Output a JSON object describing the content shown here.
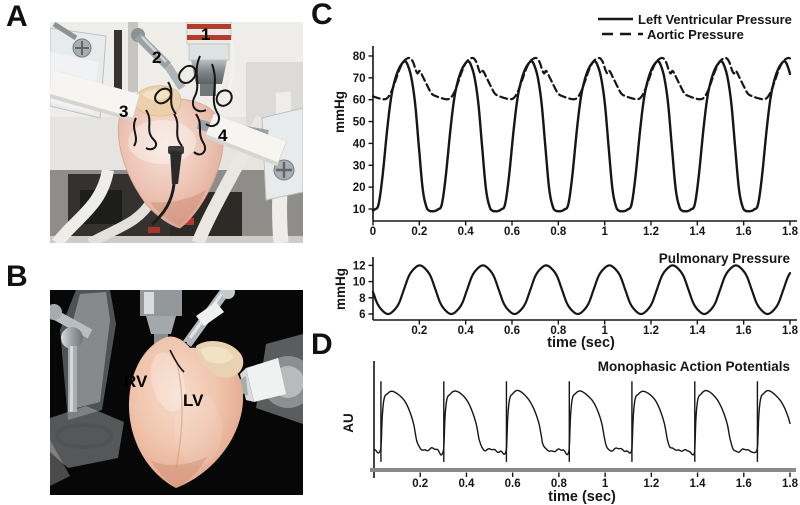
{
  "colors": {
    "ink": "#161616",
    "axis_gray": "#8a8a8a"
  },
  "panels": {
    "a": {
      "letter": "A",
      "markers": [
        "1",
        "2",
        "3",
        "4"
      ]
    },
    "b": {
      "letter": "B",
      "markers": [
        "RV",
        "LV"
      ]
    },
    "c": {
      "letter": "C"
    },
    "d": {
      "letter": "D"
    }
  },
  "chart_data": [
    {
      "id": "lv-aortic",
      "type": "line",
      "panel": "C",
      "ylabel": "mmHg",
      "xlim": [
        0,
        1.8
      ],
      "ylim": [
        4,
        84
      ],
      "grid": false,
      "legend_position": "top-right",
      "xtick_values": [
        0,
        0.2,
        0.4,
        0.6,
        0.8,
        1,
        1.2,
        1.4,
        1.6,
        1.8
      ],
      "xtick_labels": [
        "0",
        "0.2",
        "0.4",
        "0.6",
        "0.8",
        "1",
        "1.2",
        "1.4",
        "1.6",
        "1.8"
      ],
      "ytick_values": [
        10,
        20,
        30,
        40,
        50,
        60,
        70,
        80
      ],
      "ytick_labels": [
        "10",
        "20",
        "30",
        "40",
        "50",
        "60",
        "70",
        "80"
      ],
      "legend": [
        {
          "label": "Left Ventricular Pressure",
          "line": "solid"
        },
        {
          "label": "Aortic Pressure",
          "line": "dashed"
        }
      ],
      "period_sec": 0.273,
      "series": [
        {
          "name": "Left Ventricular Pressure",
          "line": "solid",
          "min_mmHg": 9,
          "peak_mmHg": 78,
          "cycle_start_sec": -0.02,
          "cycle_phase_value": [
            [
              0,
              9
            ],
            [
              0.04,
              9
            ],
            [
              0.1,
              9.8
            ],
            [
              0.16,
              12
            ],
            [
              0.22,
              24
            ],
            [
              0.3,
              47
            ],
            [
              0.36,
              61
            ],
            [
              0.42,
              69
            ],
            [
              0.48,
              74
            ],
            [
              0.54,
              76.8
            ],
            [
              0.58,
              77.6
            ],
            [
              0.62,
              76
            ],
            [
              0.68,
              70
            ],
            [
              0.74,
              58
            ],
            [
              0.8,
              38
            ],
            [
              0.86,
              19
            ],
            [
              0.92,
              10.8
            ],
            [
              0.97,
              9.1
            ],
            [
              1,
              9
            ]
          ]
        },
        {
          "name": "Aortic Pressure",
          "line": "dashed",
          "min_mmHg": 60,
          "peak_mmHg": 79,
          "cycle_start_sec": -0.02,
          "cycle_phase_value": [
            [
              0,
              62.8
            ],
            [
              0.08,
              61.5
            ],
            [
              0.16,
              60.7
            ],
            [
              0.24,
              60.2
            ],
            [
              0.3,
              60.8
            ],
            [
              0.36,
              63.5
            ],
            [
              0.42,
              68
            ],
            [
              0.48,
              73
            ],
            [
              0.54,
              76.8
            ],
            [
              0.6,
              78.6
            ],
            [
              0.66,
              79
            ],
            [
              0.71,
              77
            ],
            [
              0.75,
              73.5
            ],
            [
              0.78,
              72
            ],
            [
              0.81,
              73.2
            ],
            [
              0.87,
              70
            ],
            [
              0.93,
              66.5
            ],
            [
              1,
              62.8
            ]
          ]
        }
      ]
    },
    {
      "id": "pulmonary",
      "type": "line",
      "panel": "C",
      "title": "Pulmonary Pressure",
      "ylabel": "mmHg",
      "xlabel": "time  (sec)",
      "xlim": [
        0,
        1.8
      ],
      "ylim": [
        5,
        13
      ],
      "grid": false,
      "xtick_values": [
        0.2,
        0.4,
        0.6,
        0.8,
        1,
        1.2,
        1.4,
        1.6,
        1.8
      ],
      "xtick_labels": [
        "0.2",
        "0.4",
        "0.6",
        "0.8",
        "1",
        "1.2",
        "1.4",
        "1.6",
        "1.8"
      ],
      "ytick_values": [
        6,
        8,
        10,
        12
      ],
      "ytick_labels": [
        "6",
        "8",
        "10",
        "12"
      ],
      "period_sec": 0.273,
      "series": [
        {
          "name": "Pulmonary Pressure",
          "line": "solid",
          "min_mmHg": 6,
          "peak_mmHg": 12,
          "cycle_start_sec": 0.065,
          "cycle_phase_value": [
            [
              0,
              6
            ],
            [
              0.08,
              6.35
            ],
            [
              0.17,
              7.3
            ],
            [
              0.25,
              9
            ],
            [
              0.33,
              10.7
            ],
            [
              0.42,
              11.65
            ],
            [
              0.5,
              12
            ],
            [
              0.58,
              11.65
            ],
            [
              0.67,
              10.7
            ],
            [
              0.75,
              9
            ],
            [
              0.83,
              7.3
            ],
            [
              0.92,
              6.35
            ],
            [
              1,
              6
            ]
          ]
        }
      ]
    },
    {
      "id": "map",
      "type": "line",
      "panel": "D",
      "title": "Monophasic Action Potentials",
      "ylabel": "AU",
      "xlabel": "time  (sec)",
      "xlim": [
        0,
        1.8
      ],
      "grid": false,
      "xtick_values": [
        0.2,
        0.4,
        0.6,
        0.8,
        1,
        1.2,
        1.4,
        1.6,
        1.8
      ],
      "xtick_labels": [
        "0.2",
        "0.4",
        "0.6",
        "0.8",
        "1",
        "1.2",
        "1.4",
        "1.6",
        "1.8"
      ],
      "period_sec": 0.2715,
      "pacing_spike_times_sec": [
        0.03,
        0.302,
        0.573,
        0.845,
        1.116,
        1.388,
        1.659
      ],
      "series": [
        {
          "name": "Monophasic Action Potential",
          "line": "solid",
          "cycle_start_sec": 0.03,
          "cycle_phase_value": [
            [
              0,
              0.08
            ],
            [
              0.02,
              0.5
            ],
            [
              0.05,
              0.75
            ],
            [
              0.1,
              0.82
            ],
            [
              0.16,
              0.86
            ],
            [
              0.22,
              0.85
            ],
            [
              0.3,
              0.8
            ],
            [
              0.38,
              0.72
            ],
            [
              0.45,
              0.6
            ],
            [
              0.52,
              0.42
            ],
            [
              0.57,
              0.2
            ],
            [
              0.62,
              0.09
            ],
            [
              0.7,
              0.07
            ],
            [
              0.8,
              0.08
            ],
            [
              0.9,
              0.065
            ],
            [
              1,
              0.08
            ]
          ]
        }
      ]
    }
  ]
}
